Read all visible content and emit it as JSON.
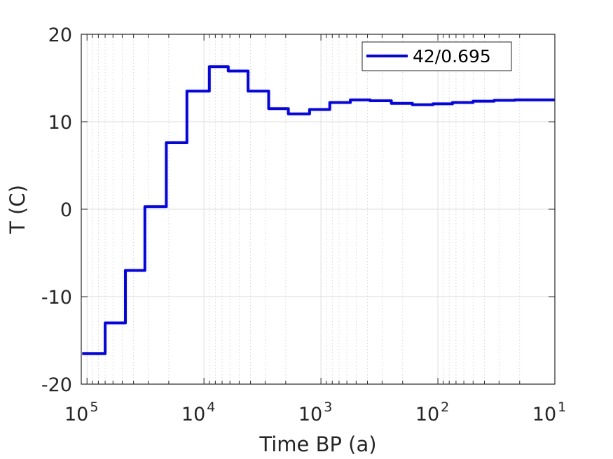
{
  "chart_data": {
    "type": "line",
    "line_style": "step",
    "xlabel": "Time BP (a)",
    "ylabel": "T (C)",
    "x_scale": "log",
    "x_reversed": true,
    "xlim": [
      112000,
      10
    ],
    "ylim": [
      -20,
      20
    ],
    "xticks": [
      {
        "value": 100000,
        "base": "10",
        "exp": "5"
      },
      {
        "value": 10000,
        "base": "10",
        "exp": "4"
      },
      {
        "value": 1000,
        "base": "10",
        "exp": "3"
      },
      {
        "value": 100,
        "base": "10",
        "exp": "2"
      },
      {
        "value": 10,
        "base": "10",
        "exp": "1"
      }
    ],
    "yticks": [
      {
        "value": 20,
        "label": "20"
      },
      {
        "value": 10,
        "label": "10"
      },
      {
        "value": 0,
        "label": "0"
      },
      {
        "value": -10,
        "label": "-10"
      },
      {
        "value": -20,
        "label": "-20"
      }
    ],
    "grid": true,
    "legend_position": "top-right",
    "series": [
      {
        "name": "42/0.695",
        "color": "#0000ff",
        "points": [
          {
            "x": 110000,
            "y": -16.5
          },
          {
            "x": 70000,
            "y": -16.5
          },
          {
            "x": 70000,
            "y": -13.0
          },
          {
            "x": 47000,
            "y": -13.0
          },
          {
            "x": 47000,
            "y": -7.0
          },
          {
            "x": 32000,
            "y": -7.0
          },
          {
            "x": 32000,
            "y": 0.3
          },
          {
            "x": 21000,
            "y": 0.3
          },
          {
            "x": 21000,
            "y": 7.6
          },
          {
            "x": 14000,
            "y": 7.6
          },
          {
            "x": 14000,
            "y": 13.5
          },
          {
            "x": 9000,
            "y": 13.5
          },
          {
            "x": 9000,
            "y": 16.3
          },
          {
            "x": 6200,
            "y": 16.3
          },
          {
            "x": 6200,
            "y": 15.8
          },
          {
            "x": 4200,
            "y": 15.8
          },
          {
            "x": 4200,
            "y": 13.5
          },
          {
            "x": 2800,
            "y": 13.5
          },
          {
            "x": 2800,
            "y": 11.5
          },
          {
            "x": 1900,
            "y": 11.5
          },
          {
            "x": 1900,
            "y": 10.9
          },
          {
            "x": 1250,
            "y": 10.9
          },
          {
            "x": 1250,
            "y": 11.4
          },
          {
            "x": 840,
            "y": 11.4
          },
          {
            "x": 840,
            "y": 12.2
          },
          {
            "x": 560,
            "y": 12.2
          },
          {
            "x": 560,
            "y": 12.5
          },
          {
            "x": 380,
            "y": 12.5
          },
          {
            "x": 380,
            "y": 12.4
          },
          {
            "x": 250,
            "y": 12.4
          },
          {
            "x": 250,
            "y": 12.1
          },
          {
            "x": 165,
            "y": 12.1
          },
          {
            "x": 165,
            "y": 11.95
          },
          {
            "x": 110,
            "y": 11.95
          },
          {
            "x": 110,
            "y": 12.05
          },
          {
            "x": 75,
            "y": 12.05
          },
          {
            "x": 75,
            "y": 12.2
          },
          {
            "x": 50,
            "y": 12.2
          },
          {
            "x": 50,
            "y": 12.35
          },
          {
            "x": 33,
            "y": 12.35
          },
          {
            "x": 33,
            "y": 12.45
          },
          {
            "x": 22,
            "y": 12.45
          },
          {
            "x": 22,
            "y": 12.5
          },
          {
            "x": 10,
            "y": 12.5
          }
        ]
      }
    ]
  }
}
